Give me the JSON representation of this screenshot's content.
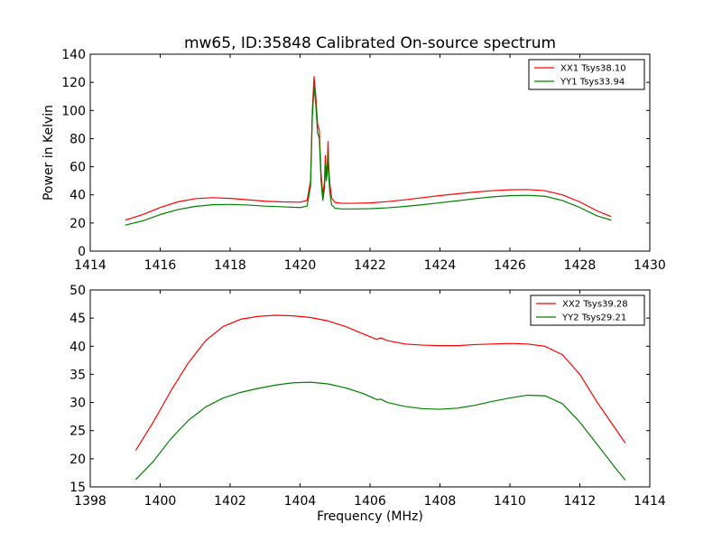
{
  "figure": {
    "title": "mw65, ID:35848 Calibrated On-source spectrum"
  },
  "chart_data": [
    {
      "type": "line",
      "title": "mw65, ID:35848 Calibrated On-source spectrum",
      "xlabel": "",
      "ylabel": "Power in Kelvin",
      "xlim": [
        1414,
        1430
      ],
      "ylim": [
        0,
        140
      ],
      "xticks": [
        "1414",
        "1416",
        "1418",
        "1420",
        "1422",
        "1424",
        "1426",
        "1428",
        "1430"
      ],
      "yticks": [
        "0",
        "20",
        "40",
        "60",
        "80",
        "100",
        "120",
        "140"
      ],
      "grid": false,
      "legend_position": "top-right",
      "series": [
        {
          "name": "XX1 Tsys38.10",
          "color": "#ff0000",
          "x": [
            1415.0,
            1415.5,
            1416.0,
            1416.5,
            1417.0,
            1417.5,
            1418.0,
            1418.5,
            1419.0,
            1419.5,
            1420.0,
            1420.2,
            1420.3,
            1420.35,
            1420.4,
            1420.45,
            1420.5,
            1420.55,
            1420.6,
            1420.65,
            1420.7,
            1420.72,
            1420.75,
            1420.78,
            1420.8,
            1420.82,
            1420.85,
            1420.9,
            1421.0,
            1421.2,
            1421.5,
            1422.0,
            1422.5,
            1423.0,
            1423.5,
            1424.0,
            1424.5,
            1425.0,
            1425.5,
            1426.0,
            1426.5,
            1427.0,
            1427.5,
            1428.0,
            1428.5,
            1428.9
          ],
          "y": [
            22,
            26,
            31,
            35,
            37.3,
            38,
            37.5,
            36.5,
            35.5,
            35,
            34.8,
            36,
            50,
            100,
            124,
            110,
            90,
            86,
            55,
            40,
            50,
            68,
            55,
            62,
            78,
            60,
            48,
            38,
            34.5,
            34,
            34,
            34.3,
            35.2,
            36.5,
            38,
            39.5,
            40.8,
            42,
            43,
            43.6,
            43.8,
            43,
            40,
            35,
            28.5,
            24.5
          ]
        },
        {
          "name": "YY1 Tsys33.94",
          "color": "#008000",
          "x": [
            1415.0,
            1415.5,
            1416.0,
            1416.5,
            1417.0,
            1417.5,
            1418.0,
            1418.5,
            1419.0,
            1419.5,
            1420.0,
            1420.2,
            1420.3,
            1420.35,
            1420.4,
            1420.45,
            1420.5,
            1420.55,
            1420.6,
            1420.65,
            1420.7,
            1420.72,
            1420.75,
            1420.78,
            1420.8,
            1420.82,
            1420.85,
            1420.9,
            1421.0,
            1421.2,
            1421.5,
            1422.0,
            1422.5,
            1423.0,
            1423.5,
            1424.0,
            1424.5,
            1425.0,
            1425.5,
            1426.0,
            1426.5,
            1427.0,
            1427.5,
            1428.0,
            1428.5,
            1428.9
          ],
          "y": [
            18.5,
            21.5,
            26,
            29.5,
            31.8,
            33,
            33.2,
            32.8,
            32,
            31.5,
            31,
            32,
            46,
            95,
            117,
            104,
            84,
            80,
            50,
            36,
            45,
            62,
            50,
            56,
            72,
            54,
            42,
            33,
            30.5,
            30,
            30,
            30.2,
            30.8,
            31.8,
            33,
            34.4,
            35.8,
            37.3,
            38.6,
            39.4,
            39.7,
            39,
            36,
            31,
            25,
            22
          ]
        }
      ]
    },
    {
      "type": "line",
      "title": "",
      "xlabel": "Frequency (MHz)",
      "ylabel": "",
      "xlim": [
        1398,
        1414
      ],
      "ylim": [
        15,
        50
      ],
      "xticks": [
        "1398",
        "1400",
        "1402",
        "1404",
        "1406",
        "1408",
        "1410",
        "1412",
        "1414"
      ],
      "yticks": [
        "15",
        "20",
        "25",
        "30",
        "35",
        "40",
        "45",
        "50"
      ],
      "grid": false,
      "legend_position": "top-right",
      "series": [
        {
          "name": "XX2 Tsys39.28",
          "color": "#ff0000",
          "x": [
            1399.3,
            1399.8,
            1400.3,
            1400.8,
            1401.3,
            1401.8,
            1402.3,
            1402.8,
            1403.3,
            1403.8,
            1404.3,
            1404.8,
            1405.3,
            1405.8,
            1406.2,
            1406.3,
            1406.5,
            1407.0,
            1407.5,
            1408.0,
            1408.5,
            1409.0,
            1409.5,
            1410.0,
            1410.5,
            1411.0,
            1411.5,
            1412.0,
            1412.5,
            1413.0,
            1413.3
          ],
          "y": [
            21.5,
            26.5,
            32,
            37,
            41,
            43.5,
            44.8,
            45.3,
            45.5,
            45.4,
            45.1,
            44.5,
            43.5,
            42.2,
            41.2,
            41.5,
            41,
            40.4,
            40.2,
            40.1,
            40.1,
            40.3,
            40.4,
            40.5,
            40.4,
            40,
            38.5,
            35,
            30,
            25.5,
            22.8
          ]
        },
        {
          "name": "YY2 Tsys29.21",
          "color": "#008000",
          "x": [
            1399.3,
            1399.8,
            1400.3,
            1400.8,
            1401.3,
            1401.8,
            1402.3,
            1402.8,
            1403.3,
            1403.8,
            1404.3,
            1404.8,
            1405.3,
            1405.8,
            1406.2,
            1406.3,
            1406.5,
            1407.0,
            1407.5,
            1408.0,
            1408.5,
            1409.0,
            1409.5,
            1410.0,
            1410.5,
            1411.0,
            1411.5,
            1412.0,
            1412.5,
            1413.0,
            1413.3
          ],
          "y": [
            16.3,
            19.5,
            23.5,
            26.8,
            29.2,
            30.8,
            31.8,
            32.5,
            33.1,
            33.5,
            33.6,
            33.3,
            32.6,
            31.6,
            30.5,
            30.6,
            30,
            29.3,
            28.9,
            28.8,
            29,
            29.5,
            30.2,
            30.8,
            31.3,
            31.2,
            29.8,
            26.5,
            22.5,
            18.5,
            16.2
          ]
        }
      ]
    }
  ]
}
